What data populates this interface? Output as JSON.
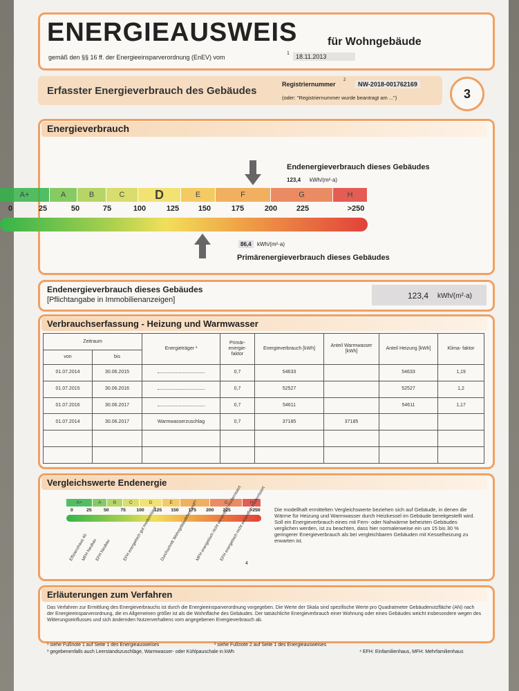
{
  "header": {
    "title": "ENERGIEAUSWEIS",
    "title_suffix": "für Wohngebäude",
    "subtitle": "gemäß den §§ 16 ff. der Energieeinsparverordnung (EnEV) vom",
    "subtitle_note": "1",
    "date": "18.11.2013"
  },
  "page_header": {
    "section": "Erfasster Energieverbrauch des Gebäudes",
    "reg_label": "Registriernummer",
    "reg_note": "2",
    "reg_number": "NW-2018-001762169",
    "reg_alt": "(oder: \"Registriernummer wurde beantragt am ...\")",
    "page_number": "3"
  },
  "energieverbrauch": {
    "heading": "Energieverbrauch",
    "end_label": "Endenergieverbrauch dieses Gebäudes",
    "end_value": "123,4",
    "end_unit": "kWh/(m²·a)",
    "classes": [
      "A+",
      "A",
      "B",
      "C",
      "D",
      "E",
      "F",
      "G",
      "H"
    ],
    "scale_labels": [
      "0",
      "25",
      "50",
      "75",
      "100",
      "125",
      "150",
      "175",
      "200",
      "225",
      ">250"
    ],
    "primary_value": "86,4",
    "primary_unit": "kWh/(m²·a)",
    "primary_label": "Primärenergieverbrauch dieses Gebäudes"
  },
  "pflichtangabe": {
    "label": "Endenergieverbrauch dieses Gebäudes",
    "note": "[Pflichtangabe in Immobilienanzeigen]",
    "value": "123,4",
    "unit": "kWh/(m²·a)"
  },
  "verbrauchserfassung": {
    "heading": "Verbrauchserfassung - Heizung und Warmwasser",
    "table": {
      "group_header": "Zeitraum",
      "headers": [
        "von",
        "bis",
        "Energieträger ³",
        "Primär- energie- faktor",
        "Energieverbrauch [kWh]",
        "Anteil Warmwasser [kWh]",
        "Anteil Heizung [kWh]",
        "Klima- faktor"
      ],
      "rows": [
        [
          "01.07.2014",
          "30.06.2015",
          null,
          "0,7",
          "54633",
          null,
          "54633",
          "1,19"
        ],
        [
          "01.07.2015",
          "30.06.2016",
          null,
          "0,7",
          "52527",
          null,
          "52527",
          "1,2"
        ],
        [
          "01.07.2016",
          "30.06.2017",
          null,
          "0,7",
          "54611",
          null,
          "54611",
          "1,17"
        ],
        [
          "01.07.2014",
          "30.06.2017",
          "Warmwasserzuschlag",
          "0,7",
          "37185",
          "37185",
          null,
          null
        ],
        [
          null,
          null,
          null,
          null,
          null,
          null,
          null,
          null
        ],
        [
          null,
          null,
          null,
          null,
          null,
          null,
          null,
          null
        ]
      ]
    }
  },
  "vergleichswerte": {
    "heading": "Vergleichswerte Endenergie",
    "building_labels": [
      "Effizienzhaus 40",
      "MFH Neubau",
      "EFH Neubau",
      "EFH energetisch gut modernisiert",
      "Durchschnitt Wohngebäudebestand",
      "MFH energetisch nicht wesentlich modernisiert",
      "EFH energetisch nicht wesentlich modernisiert"
    ],
    "note": "4",
    "text": "Die modellhaft ermittelten Vergleichswerte beziehen sich auf Gebäude, in denen die Wärme für Heizung und Warmwasser durch Heizkessel im Gebäude bereitgestellt wird. Soll ein Energieverbrauch eines mit Fern- oder Nahwärme beheizten Gebäudes verglichen werden, ist zu beachten, dass hier normalerweise ein um 15 bis 30 % geringerer Energieverbrauch als bei vergleichbaren Gebäuden mit Kesselheizung zu erwarten ist."
  },
  "erlaeuterungen": {
    "heading": "Erläuterungen zum Verfahren",
    "text": "Das Verfahren zur Ermittlung des Energieverbrauchs ist durch die Energieeinsparverordnung vorgegeben. Die Werte der Skala sind spezifische Werte pro Quadratmeter Gebäudenutzfläche (AN) nach der Energieeinsparverordnung, die im Allgemeinen größer ist als die Wohnfläche des Gebäudes. Der tatsächliche Energieverbrauch einer Wohnung oder eines Gebäudes weicht insbesondere wegen des Witterungseinflusses und sich ändernden Nutzerverhaltens vom angegebenen Energieverbrauch ab."
  },
  "footnotes": [
    "¹ siehe Fußnote 1 auf Seite 1 des Energieausweises",
    "² siehe Fußnote 2 auf Seite 1 des Energieausweises",
    "³ gegebenenfalls auch Leerstandszuschläge, Warmwasser- oder Kühlpauschale in kWh",
    "⁴ EFH: Einfamilienhaus, MFH: Mehrfamilienhaus"
  ]
}
